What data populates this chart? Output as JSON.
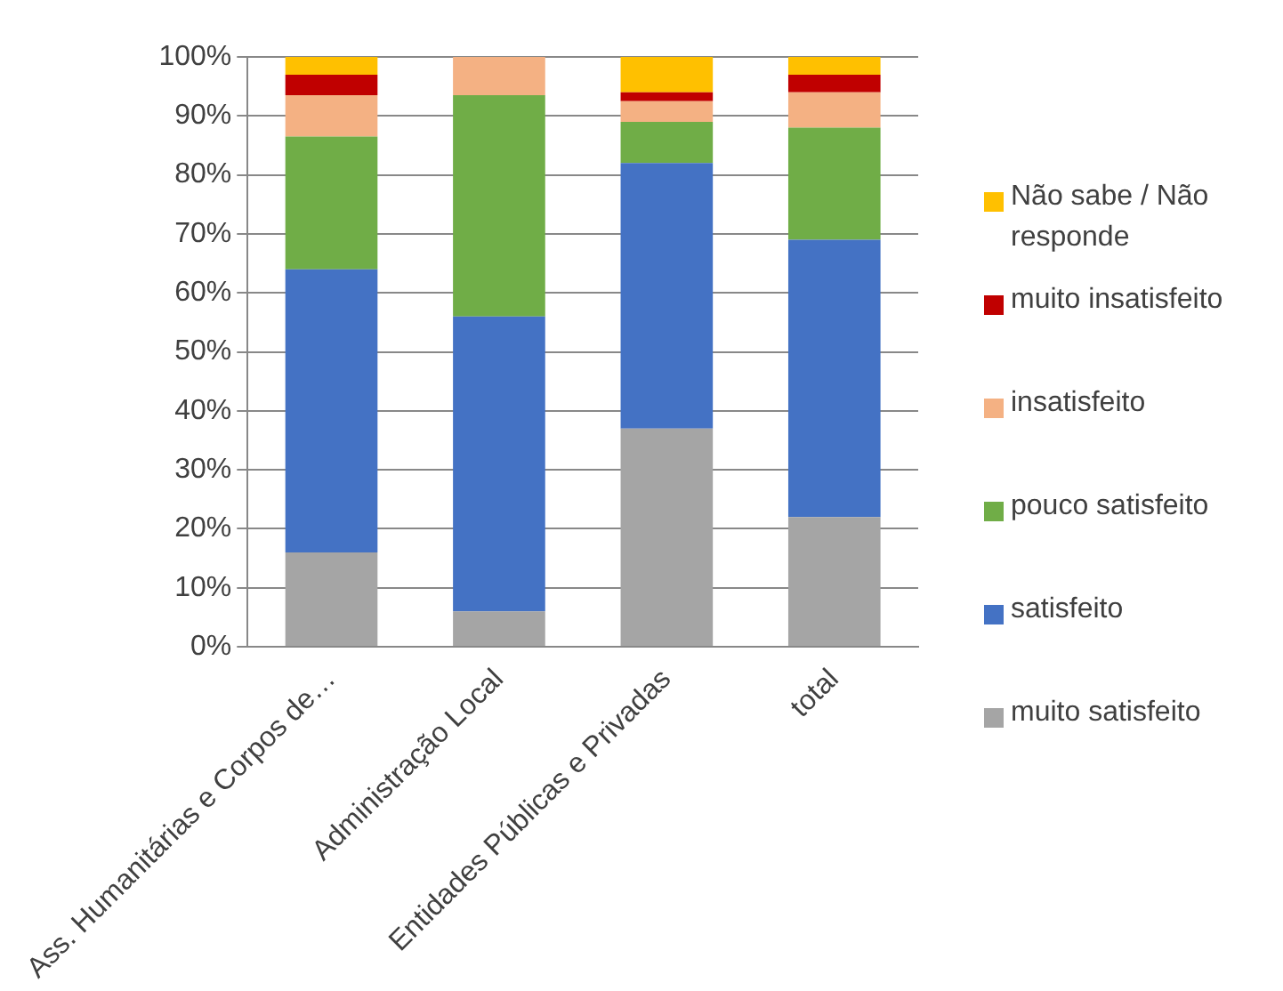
{
  "chart_data": {
    "type": "bar",
    "stacked": true,
    "categories": [
      "Ass. Humanitárias e Corpos de…",
      "Administração Local",
      "Entidades Públicas e Privadas",
      "total"
    ],
    "series": [
      {
        "name": "muito satisfeito",
        "color": "#a5a5a5",
        "values": [
          16,
          6,
          37,
          22
        ]
      },
      {
        "name": "satisfeito",
        "color": "#4472c4",
        "values": [
          48,
          50,
          45,
          47
        ]
      },
      {
        "name": "pouco satisfeito",
        "color": "#70ad47",
        "values": [
          22.5,
          37.5,
          7,
          19
        ]
      },
      {
        "name": "insatisfeito",
        "color": "#f4b183",
        "values": [
          7,
          6.5,
          3.5,
          6
        ]
      },
      {
        "name": "muito insatisfeito",
        "color": "#c00000",
        "values": [
          3.5,
          0,
          1.5,
          3
        ]
      },
      {
        "name": "Não sabe / Não responde",
        "color": "#ffc000",
        "values": [
          3,
          0,
          6,
          3
        ]
      }
    ],
    "ylim": [
      0,
      100
    ],
    "yticks": [
      {
        "value": 0,
        "label": "0%"
      },
      {
        "value": 10,
        "label": "10%"
      },
      {
        "value": 20,
        "label": "20%"
      },
      {
        "value": 30,
        "label": "30%"
      },
      {
        "value": 40,
        "label": "40%"
      },
      {
        "value": 50,
        "label": "50%"
      },
      {
        "value": 60,
        "label": "60%"
      },
      {
        "value": 70,
        "label": "70%"
      },
      {
        "value": 80,
        "label": "80%"
      },
      {
        "value": 90,
        "label": "90%"
      },
      {
        "value": 100,
        "label": "100%"
      }
    ],
    "grid": "y",
    "legend": "right"
  }
}
